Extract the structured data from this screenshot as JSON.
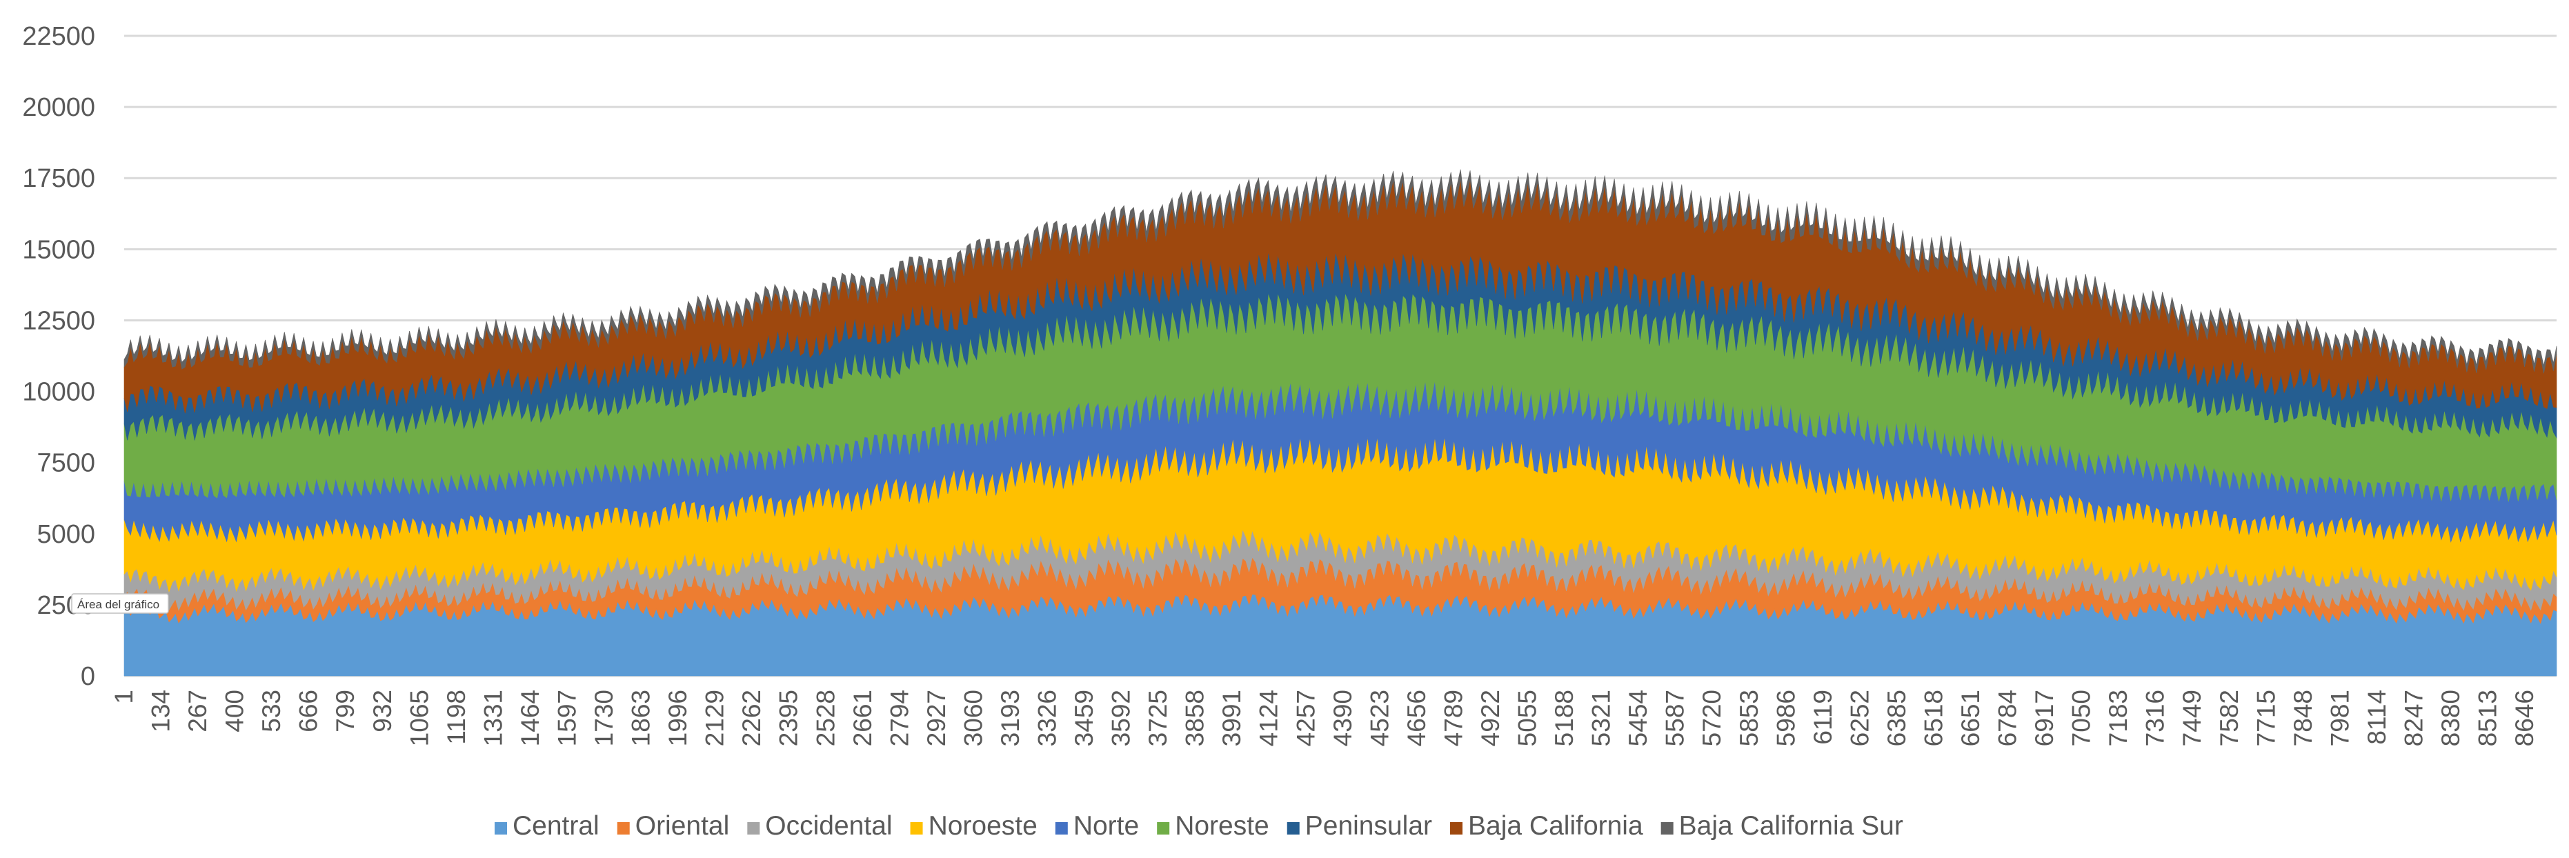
{
  "chart_data": {
    "type": "area",
    "stacked": true,
    "x_min": 1,
    "x_max": 8760,
    "x_tick_labels": [
      "1",
      "134",
      "267",
      "400",
      "533",
      "666",
      "799",
      "932",
      "1065",
      "1198",
      "1331",
      "1464",
      "1597",
      "1730",
      "1863",
      "1996",
      "2129",
      "2262",
      "2395",
      "2528",
      "2661",
      "2794",
      "2927",
      "3060",
      "3193",
      "3326",
      "3459",
      "3592",
      "3725",
      "3858",
      "3991",
      "4124",
      "4257",
      "4390",
      "4523",
      "4656",
      "4789",
      "4922",
      "5055",
      "5188",
      "5321",
      "5454",
      "5587",
      "5720",
      "5853",
      "5986",
      "6119",
      "6252",
      "6385",
      "6518",
      "6651",
      "6784",
      "6917",
      "7050",
      "7183",
      "7316",
      "7449",
      "7582",
      "7715",
      "7848",
      "7981",
      "8114",
      "8247",
      "8380",
      "8513",
      "8646"
    ],
    "ylim": [
      0,
      22500
    ],
    "y_ticks": [
      0,
      2500,
      5000,
      7500,
      10000,
      12500,
      15000,
      17500,
      20000,
      22500
    ],
    "grid": true,
    "legend_position": "bottom",
    "series": [
      {
        "name": "Central",
        "color": "#5B9BD5",
        "profile": [
          2200,
          2250,
          2300,
          2350,
          2450,
          2550,
          2500,
          2400,
          2300,
          2250,
          2200,
          2200
        ]
      },
      {
        "name": "Oriental",
        "color": "#ED7D31",
        "profile": [
          500,
          550,
          700,
          900,
          1100,
          1150,
          1100,
          1050,
          900,
          700,
          550,
          500
        ]
      },
      {
        "name": "Occidental",
        "color": "#A5A5A5",
        "profile": [
          700,
          700,
          750,
          800,
          850,
          900,
          900,
          880,
          850,
          800,
          750,
          700
        ]
      },
      {
        "name": "Noroeste",
        "color": "#FFC000",
        "profile": [
          1700,
          1750,
          1900,
          2200,
          2700,
          3100,
          3200,
          3100,
          2800,
          2300,
          1900,
          1700
        ]
      },
      {
        "name": "Norte",
        "color": "#4472C4",
        "profile": [
          1400,
          1450,
          1550,
          1700,
          1900,
          2000,
          2000,
          1950,
          1850,
          1650,
          1500,
          1400
        ]
      },
      {
        "name": "Noreste",
        "color": "#70AD47",
        "profile": [
          2300,
          2350,
          2450,
          2650,
          2900,
          3100,
          3150,
          3100,
          3000,
          2700,
          2450,
          2300
        ]
      },
      {
        "name": "Peninsular",
        "color": "#255E91",
        "profile": [
          1000,
          1050,
          1100,
          1200,
          1300,
          1350,
          1350,
          1350,
          1300,
          1200,
          1100,
          1000
        ]
      },
      {
        "name": "Baja California",
        "color": "#9E480E",
        "profile": [
          1400,
          1400,
          1450,
          1550,
          1900,
          2400,
          2600,
          2600,
          2400,
          1900,
          1500,
          1400
        ]
      },
      {
        "name": "Baja California Sur",
        "color": "#636363",
        "profile": [
          250,
          260,
          280,
          300,
          330,
          360,
          370,
          370,
          350,
          320,
          280,
          260
        ]
      }
    ]
  },
  "tooltip": {
    "label": "Área del gráfico"
  }
}
